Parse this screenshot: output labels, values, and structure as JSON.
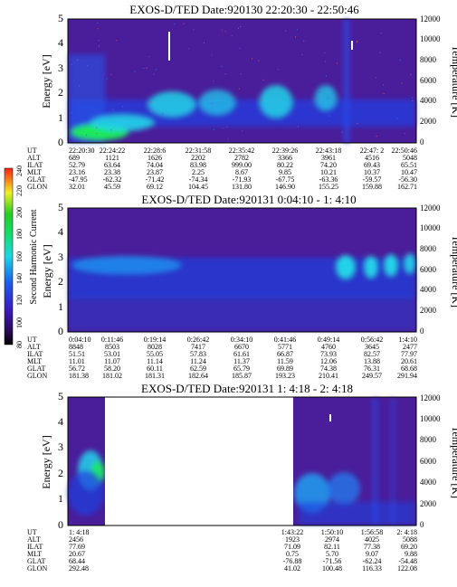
{
  "panels": [
    {
      "title": "EXOS-D/TED   Date:920130  22:20:30 - 22:50:46",
      "ylabel_left": "Energy [eV]",
      "ylabel_right": "Temperature [K]",
      "left_ticks": [
        "0",
        "1",
        "2",
        "3",
        "4",
        "5"
      ],
      "right_ticks": [
        "0",
        "2000",
        "4000",
        "6000",
        "8000",
        "10000",
        "12000"
      ],
      "row_labels": [
        "UT",
        "ALT",
        "ILAT",
        "MLT",
        "GLAT",
        "GLON"
      ],
      "columns": [
        [
          "22:20:30",
          "689",
          "52.79",
          "23.16",
          "-47.95",
          "32.01"
        ],
        [
          "22:24:22",
          "1121",
          "63.64",
          "23.38",
          "-62.32",
          "45.59"
        ],
        [
          "22:28:6",
          "1626",
          "74.04",
          "23.87",
          "-71.42",
          "69.12"
        ],
        [
          "22:31:58",
          "2202",
          "83.98",
          "2.25",
          "-74.34",
          "104.45"
        ],
        [
          "22:35:42",
          "2782",
          "999.00",
          "8.67",
          "-71.93",
          "131.80"
        ],
        [
          "22:39:26",
          "3366",
          "80.22",
          "9.85",
          "-67.75",
          "146.90"
        ],
        [
          "22:43:18",
          "3961",
          "74.20",
          "10.21",
          "-63.36",
          "155.25"
        ],
        [
          "22:47: 2",
          "4516",
          "69.43",
          "10.37",
          "-59.57",
          "159.88"
        ],
        [
          "22:50:46",
          "5048",
          "65.51",
          "10.47",
          "-56.30",
          "162.71"
        ]
      ]
    },
    {
      "title": "EXOS-D/TED   Date:920131   0:04:10 - 1: 4:10",
      "ylabel_left": "Energy [eV]",
      "ylabel_right": "Temperature [K]",
      "left_ticks": [
        "0",
        "1",
        "2",
        "3",
        "4",
        "5"
      ],
      "right_ticks": [
        "0",
        "2000",
        "4000",
        "6000",
        "8000",
        "10000",
        "12000"
      ],
      "row_labels": [
        "UT",
        "ALT",
        "ILAT",
        "MLT",
        "GLAT",
        "GLON"
      ],
      "columns": [
        [
          "0:04:10",
          "8848",
          "51.51",
          "11.01",
          "56.72",
          "181.38"
        ],
        [
          "0:11:46",
          "8503",
          "53.01",
          "11.07",
          "58.20",
          "181.02"
        ],
        [
          "0:19:14",
          "8028",
          "55.05",
          "11.14",
          "60.11",
          "181.31"
        ],
        [
          "0:26:42",
          "7417",
          "57.83",
          "11.24",
          "62.59",
          "182.64"
        ],
        [
          "0:34:10",
          "6670",
          "61.61",
          "11.37",
          "65.79",
          "185.87"
        ],
        [
          "0:41:46",
          "5771",
          "66.87",
          "11.59",
          "69.89",
          "193.23"
        ],
        [
          "0:49:14",
          "4760",
          "73.93",
          "12.06",
          "74.38",
          "210.41"
        ],
        [
          "0:56:42",
          "3645",
          "82.57",
          "13.88",
          "76.31",
          "249.57"
        ],
        [
          "1:4:10",
          "2477",
          "77.97",
          "20.61",
          "68.68",
          "291.94"
        ]
      ]
    },
    {
      "title": "EXOS-D/TED   Date:920131  1: 4:18 - 2: 4:18",
      "ylabel_left": "Energy [eV]",
      "ylabel_right": "Temperature [K]",
      "left_ticks": [
        "0",
        "1",
        "2",
        "3",
        "4",
        "5"
      ],
      "right_ticks": [
        "0",
        "2000",
        "4000",
        "6000",
        "8000",
        "10000",
        "12000"
      ],
      "row_labels": [
        "UT",
        "ALT",
        "ILAT",
        "MLT",
        "GLAT",
        "GLON"
      ],
      "columns": [
        [
          "1: 4:18",
          "2456",
          "77.69",
          "20.67",
          "68.44",
          "292.48"
        ],
        [
          "1:43:22",
          "1923",
          "71.09",
          "0.75",
          "-76.88",
          "41.02"
        ],
        [
          "1:50:10",
          "2974",
          "82.11",
          "5.70",
          "-71.56",
          "100.48"
        ],
        [
          "1:56:58",
          "4025",
          "77.38",
          "9.07",
          "-62.24",
          "116.33"
        ],
        [
          "2: 4:18",
          "5088",
          "69.20",
          "9.88",
          "-54.48",
          "122.08"
        ]
      ]
    }
  ],
  "colorbar": {
    "label": "Second Harmonic Current",
    "ticks": [
      "80",
      "100",
      "120",
      "140",
      "160",
      "180",
      "200",
      "220",
      "240"
    ]
  },
  "colors": {
    "background_purple": "#4a1d9a",
    "spectral_blue": "#1538e8",
    "spectral_cyan": "#22d3e8",
    "spectral_green": "#1de85c",
    "data_gap": "#ffffff"
  },
  "chart_data": [
    {
      "type": "heatmap",
      "title": "EXOS-D/TED   Date:920130  22:20:30 - 22:50:46",
      "xlabel": "UT",
      "ylabel": "Energy [eV]",
      "ylabel_right": "Temperature [K]",
      "ylim": [
        0,
        5
      ],
      "ylim_right": [
        0,
        12000
      ],
      "xticks": [
        "22:20:30",
        "22:24:22",
        "22:28:6",
        "22:31:58",
        "22:35:42",
        "22:39:26",
        "22:43:18",
        "22:47: 2",
        "22:50:46"
      ]
    },
    {
      "type": "heatmap",
      "title": "EXOS-D/TED   Date:920131   0:04:10 - 1: 4:10",
      "xlabel": "UT",
      "ylabel": "Energy [eV]",
      "ylabel_right": "Temperature [K]",
      "ylim": [
        0,
        5
      ],
      "ylim_right": [
        0,
        12000
      ],
      "xticks": [
        "0:04:10",
        "0:11:46",
        "0:19:14",
        "0:26:42",
        "0:34:10",
        "0:41:46",
        "0:49:14",
        "0:56:42",
        "1:4:10"
      ]
    },
    {
      "type": "heatmap",
      "title": "EXOS-D/TED   Date:920131  1: 4:18 - 2: 4:18",
      "xlabel": "UT",
      "ylabel": "Energy [eV]",
      "ylabel_right": "Temperature [K]",
      "ylim": [
        0,
        5
      ],
      "ylim_right": [
        0,
        12000
      ],
      "xticks": [
        "1: 4:18",
        "1:43:22",
        "1:50:10",
        "1:56:58",
        "2: 4:18"
      ]
    }
  ]
}
